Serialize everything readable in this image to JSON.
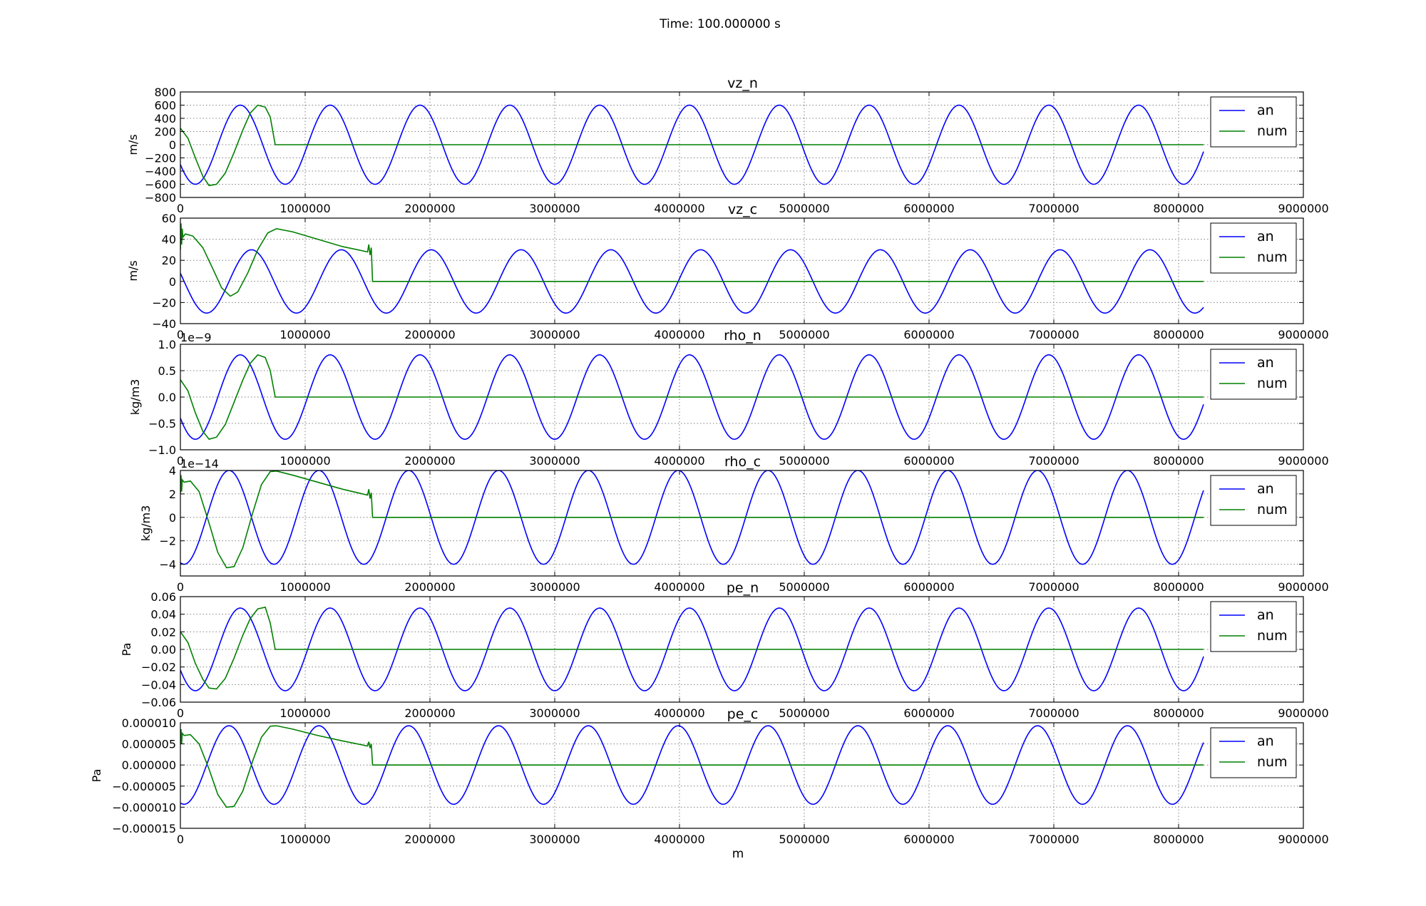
{
  "figure": {
    "suptitle": "Time: 100.000000 s",
    "xlabel": "m"
  },
  "colors": {
    "an": "#0000ff",
    "num": "#008000",
    "grid": "#808080",
    "axes": "#000000"
  },
  "chart_data": [
    {
      "type": "line",
      "title": "vz_n",
      "ylabel": "m/s",
      "offset_text": "",
      "xlim": [
        0,
        9000000
      ],
      "ylim": [
        -800,
        800
      ],
      "xticks": [
        0,
        1000000,
        2000000,
        3000000,
        4000000,
        5000000,
        6000000,
        7000000,
        8000000,
        9000000
      ],
      "xtick_labels": [
        "0",
        "1000000",
        "2000000",
        "3000000",
        "4000000",
        "5000000",
        "6000000",
        "7000000",
        "8000000",
        "9000000"
      ],
      "yticks": [
        -800,
        -600,
        -400,
        -200,
        0,
        200,
        400,
        600,
        800
      ],
      "ytick_labels": [
        "−800",
        "−600",
        "−400",
        "−200",
        "0",
        "200",
        "400",
        "600",
        "800"
      ],
      "grid": true,
      "legend": {
        "placement": "upper right",
        "entries": [
          "an",
          "num"
        ]
      },
      "series": [
        {
          "name": "an",
          "color": "#0000ff",
          "x_range": [
            0,
            8200000
          ],
          "amplitude": 600,
          "wavelength": 720000,
          "phase_x": 480000
        },
        {
          "name": "num",
          "color": "#008000",
          "points": [
            [
              0,
              250
            ],
            [
              60000,
              100
            ],
            [
              120000,
              -200
            ],
            [
              180000,
              -480
            ],
            [
              230000,
              -620
            ],
            [
              290000,
              -600
            ],
            [
              360000,
              -430
            ],
            [
              430000,
              -120
            ],
            [
              500000,
              220
            ],
            [
              560000,
              480
            ],
            [
              620000,
              600
            ],
            [
              680000,
              570
            ],
            [
              720000,
              420
            ],
            [
              760000,
              0
            ],
            [
              800000,
              0
            ],
            [
              8200000,
              0
            ]
          ]
        }
      ]
    },
    {
      "type": "line",
      "title": "vz_c",
      "ylabel": "m/s",
      "offset_text": "",
      "xlim": [
        0,
        9000000
      ],
      "ylim": [
        -40,
        60
      ],
      "xticks": [
        0,
        1000000,
        2000000,
        3000000,
        4000000,
        5000000,
        6000000,
        7000000,
        8000000,
        9000000
      ],
      "xtick_labels": [
        "0",
        "1000000",
        "2000000",
        "3000000",
        "4000000",
        "5000000",
        "6000000",
        "7000000",
        "8000000",
        "9000000"
      ],
      "yticks": [
        -40,
        -20,
        0,
        20,
        40,
        60
      ],
      "ytick_labels": [
        "−40",
        "−20",
        "0",
        "20",
        "40",
        "60"
      ],
      "grid": true,
      "legend": {
        "placement": "upper right",
        "entries": [
          "an",
          "num"
        ]
      },
      "series": [
        {
          "name": "an",
          "color": "#0000ff",
          "x_range": [
            0,
            8200000
          ],
          "amplitude": 30,
          "wavelength": 720000,
          "phase_x": 570000
        },
        {
          "name": "num",
          "color": "#008000",
          "points": [
            [
              0,
              30
            ],
            [
              5000,
              55
            ],
            [
              10000,
              35
            ],
            [
              15000,
              50
            ],
            [
              20000,
              42
            ],
            [
              40000,
              45
            ],
            [
              100000,
              43
            ],
            [
              180000,
              32
            ],
            [
              260000,
              12
            ],
            [
              330000,
              -6
            ],
            [
              400000,
              -14
            ],
            [
              460000,
              -10
            ],
            [
              540000,
              8
            ],
            [
              620000,
              30
            ],
            [
              700000,
              46
            ],
            [
              770000,
              50
            ],
            [
              900000,
              47
            ],
            [
              1100000,
              40
            ],
            [
              1300000,
              33
            ],
            [
              1500000,
              28
            ],
            [
              1510000,
              35
            ],
            [
              1520000,
              25
            ],
            [
              1530000,
              32
            ],
            [
              1540000,
              0
            ],
            [
              8200000,
              0
            ]
          ]
        }
      ]
    },
    {
      "type": "line",
      "title": "rho_n",
      "ylabel": "kg/m3",
      "offset_text": "1e−9",
      "xlim": [
        0,
        9000000
      ],
      "ylim": [
        -1.0,
        1.0
      ],
      "xticks": [
        0,
        1000000,
        2000000,
        3000000,
        4000000,
        5000000,
        6000000,
        7000000,
        8000000,
        9000000
      ],
      "xtick_labels": [
        "0",
        "1000000",
        "2000000",
        "3000000",
        "4000000",
        "5000000",
        "6000000",
        "7000000",
        "8000000",
        "9000000"
      ],
      "yticks": [
        -1.0,
        -0.5,
        0.0,
        0.5,
        1.0
      ],
      "ytick_labels": [
        "−1.0",
        "−0.5",
        "0.0",
        "0.5",
        "1.0"
      ],
      "grid": true,
      "legend": {
        "placement": "upper right",
        "entries": [
          "an",
          "num"
        ]
      },
      "series": [
        {
          "name": "an",
          "color": "#0000ff",
          "x_range": [
            0,
            8200000
          ],
          "amplitude": 0.8,
          "wavelength": 720000,
          "phase_x": 480000
        },
        {
          "name": "num",
          "color": "#008000",
          "points": [
            [
              0,
              0.33
            ],
            [
              60000,
              0.12
            ],
            [
              120000,
              -0.3
            ],
            [
              180000,
              -0.65
            ],
            [
              230000,
              -0.8
            ],
            [
              290000,
              -0.76
            ],
            [
              360000,
              -0.52
            ],
            [
              430000,
              -0.1
            ],
            [
              500000,
              0.32
            ],
            [
              560000,
              0.64
            ],
            [
              620000,
              0.8
            ],
            [
              680000,
              0.75
            ],
            [
              720000,
              0.5
            ],
            [
              760000,
              0.0
            ],
            [
              800000,
              0.0
            ],
            [
              8200000,
              0.0
            ]
          ]
        }
      ]
    },
    {
      "type": "line",
      "title": "rho_c",
      "ylabel": "kg/m3",
      "offset_text": "1e−14",
      "xlim": [
        0,
        9000000
      ],
      "ylim": [
        -5,
        4
      ],
      "xticks": [
        0,
        1000000,
        2000000,
        3000000,
        4000000,
        5000000,
        6000000,
        7000000,
        8000000,
        9000000
      ],
      "xtick_labels": [
        "0",
        "1000000",
        "2000000",
        "3000000",
        "4000000",
        "5000000",
        "6000000",
        "7000000",
        "8000000",
        "9000000"
      ],
      "yticks": [
        -4,
        -2,
        0,
        2,
        4
      ],
      "ytick_labels": [
        "−4",
        "−2",
        "0",
        "2",
        "4"
      ],
      "grid": true,
      "legend": {
        "placement": "upper right",
        "entries": [
          "an",
          "num"
        ]
      },
      "series": [
        {
          "name": "an",
          "color": "#0000ff",
          "x_range": [
            0,
            8200000
          ],
          "amplitude": 4,
          "wavelength": 720000,
          "phase_x": 390000
        },
        {
          "name": "num",
          "color": "#008000",
          "points": [
            [
              0,
              2.0
            ],
            [
              5000,
              3.6
            ],
            [
              10000,
              2.2
            ],
            [
              15000,
              3.2
            ],
            [
              30000,
              3.0
            ],
            [
              80000,
              3.1
            ],
            [
              150000,
              2.2
            ],
            [
              230000,
              -0.5
            ],
            [
              300000,
              -3.0
            ],
            [
              370000,
              -4.3
            ],
            [
              430000,
              -4.2
            ],
            [
              500000,
              -2.6
            ],
            [
              580000,
              0.4
            ],
            [
              650000,
              2.8
            ],
            [
              720000,
              3.9
            ],
            [
              770000,
              3.95
            ],
            [
              900000,
              3.6
            ],
            [
              1100000,
              3.0
            ],
            [
              1300000,
              2.4
            ],
            [
              1500000,
              1.9
            ],
            [
              1510000,
              2.4
            ],
            [
              1520000,
              1.6
            ],
            [
              1530000,
              2.1
            ],
            [
              1540000,
              0
            ],
            [
              8200000,
              0
            ]
          ]
        }
      ]
    },
    {
      "type": "line",
      "title": "pe_n",
      "ylabel": "Pa",
      "offset_text": "",
      "xlim": [
        0,
        9000000
      ],
      "ylim": [
        -0.06,
        0.06
      ],
      "xticks": [
        0,
        1000000,
        2000000,
        3000000,
        4000000,
        5000000,
        6000000,
        7000000,
        8000000,
        9000000
      ],
      "xtick_labels": [
        "0",
        "1000000",
        "2000000",
        "3000000",
        "4000000",
        "5000000",
        "6000000",
        "7000000",
        "8000000",
        "9000000"
      ],
      "yticks": [
        -0.06,
        -0.04,
        -0.02,
        0.0,
        0.02,
        0.04,
        0.06
      ],
      "ytick_labels": [
        "−0.06",
        "−0.04",
        "−0.02",
        "0.00",
        "0.02",
        "0.04",
        "0.06"
      ],
      "grid": true,
      "legend": {
        "placement": "upper right",
        "entries": [
          "an",
          "num"
        ]
      },
      "series": [
        {
          "name": "an",
          "color": "#0000ff",
          "x_range": [
            0,
            8200000
          ],
          "amplitude": 0.047,
          "wavelength": 720000,
          "phase_x": 480000
        },
        {
          "name": "num",
          "color": "#008000",
          "points": [
            [
              0,
              0.02
            ],
            [
              60000,
              0.008
            ],
            [
              120000,
              -0.016
            ],
            [
              180000,
              -0.034
            ],
            [
              230000,
              -0.044
            ],
            [
              290000,
              -0.045
            ],
            [
              360000,
              -0.033
            ],
            [
              430000,
              -0.01
            ],
            [
              500000,
              0.016
            ],
            [
              560000,
              0.035
            ],
            [
              620000,
              0.046
            ],
            [
              680000,
              0.048
            ],
            [
              720000,
              0.03
            ],
            [
              760000,
              0.0
            ],
            [
              800000,
              0.0
            ],
            [
              8200000,
              0.0
            ]
          ]
        }
      ]
    },
    {
      "type": "line",
      "title": "pe_c",
      "ylabel": "Pa",
      "offset_text": "",
      "xlim": [
        0,
        9000000
      ],
      "ylim": [
        -1.5e-05,
        1e-05
      ],
      "xticks": [
        0,
        1000000,
        2000000,
        3000000,
        4000000,
        5000000,
        6000000,
        7000000,
        8000000,
        9000000
      ],
      "xtick_labels": [
        "0",
        "1000000",
        "2000000",
        "3000000",
        "4000000",
        "5000000",
        "6000000",
        "7000000",
        "8000000",
        "9000000"
      ],
      "yticks": [
        -1.5e-05,
        -1e-05,
        -5e-06,
        0.0,
        5e-06,
        1e-05
      ],
      "ytick_labels": [
        "−0.000015",
        "−0.000010",
        "−0.000005",
        "0.000000",
        "0.000005",
        "0.000010"
      ],
      "grid": true,
      "legend": {
        "placement": "upper right",
        "entries": [
          "an",
          "num"
        ]
      },
      "series": [
        {
          "name": "an",
          "color": "#0000ff",
          "x_range": [
            0,
            8200000
          ],
          "amplitude": 9.3e-06,
          "wavelength": 720000,
          "phase_x": 390000
        },
        {
          "name": "num",
          "color": "#008000",
          "points": [
            [
              0,
              5e-06
            ],
            [
              5000,
              8.5e-06
            ],
            [
              10000,
              5e-06
            ],
            [
              15000,
              7.5e-06
            ],
            [
              30000,
              7e-06
            ],
            [
              80000,
              7.2e-06
            ],
            [
              150000,
              5e-06
            ],
            [
              230000,
              -1e-06
            ],
            [
              300000,
              -7e-06
            ],
            [
              370000,
              -1e-05
            ],
            [
              430000,
              -9.8e-06
            ],
            [
              500000,
              -6.2e-06
            ],
            [
              580000,
              1e-06
            ],
            [
              650000,
              6.6e-06
            ],
            [
              720000,
              9.2e-06
            ],
            [
              770000,
              9.3e-06
            ],
            [
              900000,
              8.5e-06
            ],
            [
              1100000,
              7e-06
            ],
            [
              1300000,
              5.7e-06
            ],
            [
              1500000,
              4.5e-06
            ],
            [
              1510000,
              5.5e-06
            ],
            [
              1520000,
              4e-06
            ],
            [
              1530000,
              5e-06
            ],
            [
              1540000,
              0.0
            ],
            [
              8200000,
              0.0
            ]
          ]
        }
      ]
    }
  ]
}
